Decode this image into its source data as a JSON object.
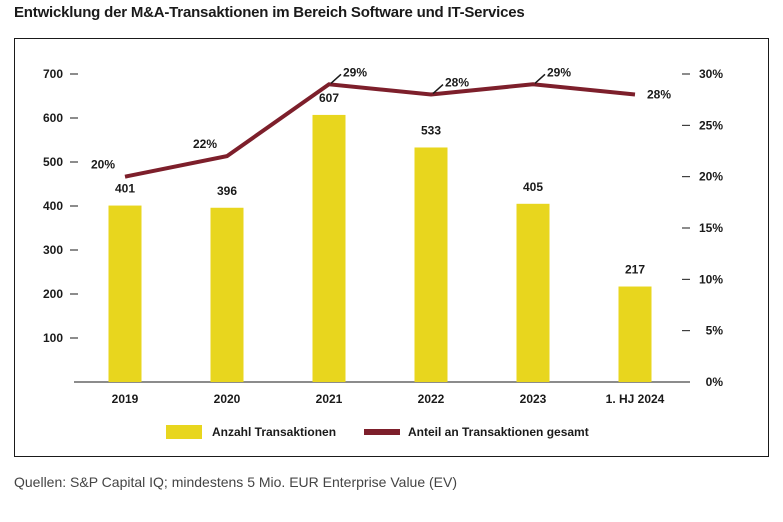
{
  "title": "Entwicklung der M&A-Transaktionen im Bereich Software und IT-Services",
  "source": "Quellen: S&P Capital IQ; mindestens 5 Mio. EUR Enterprise Value (EV)",
  "colors": {
    "bar": "#e8d61e",
    "line": "#7d1f2b",
    "axis": "#1a1a1a"
  },
  "chart_data": {
    "type": "bar",
    "categories": [
      "2019",
      "2020",
      "2021",
      "2022",
      "2023",
      "1. HJ 2024"
    ],
    "series": [
      {
        "name": "Anzahl Transaktionen",
        "type": "bar",
        "axis": "left",
        "values": [
          401,
          396,
          607,
          533,
          405,
          217
        ],
        "labels": [
          "401",
          "396",
          "607",
          "533",
          "405",
          "217"
        ]
      },
      {
        "name": "Anteil an Transaktionen gesamt",
        "type": "line",
        "axis": "right",
        "values": [
          20,
          22,
          29,
          28,
          29,
          28
        ],
        "labels": [
          "20%",
          "22%",
          "29%",
          "28%",
          "29%",
          "28%"
        ]
      }
    ],
    "ylim_left": [
      0,
      700
    ],
    "yticks_left": [
      "700",
      "600",
      "500",
      "400",
      "300",
      "200",
      "100"
    ],
    "ylim_right": [
      0,
      30
    ],
    "yticks_right": [
      "30%",
      "25%",
      "20%",
      "15%",
      "10%",
      "5%",
      "0%"
    ],
    "legend_position": "bottom",
    "grid": false
  }
}
